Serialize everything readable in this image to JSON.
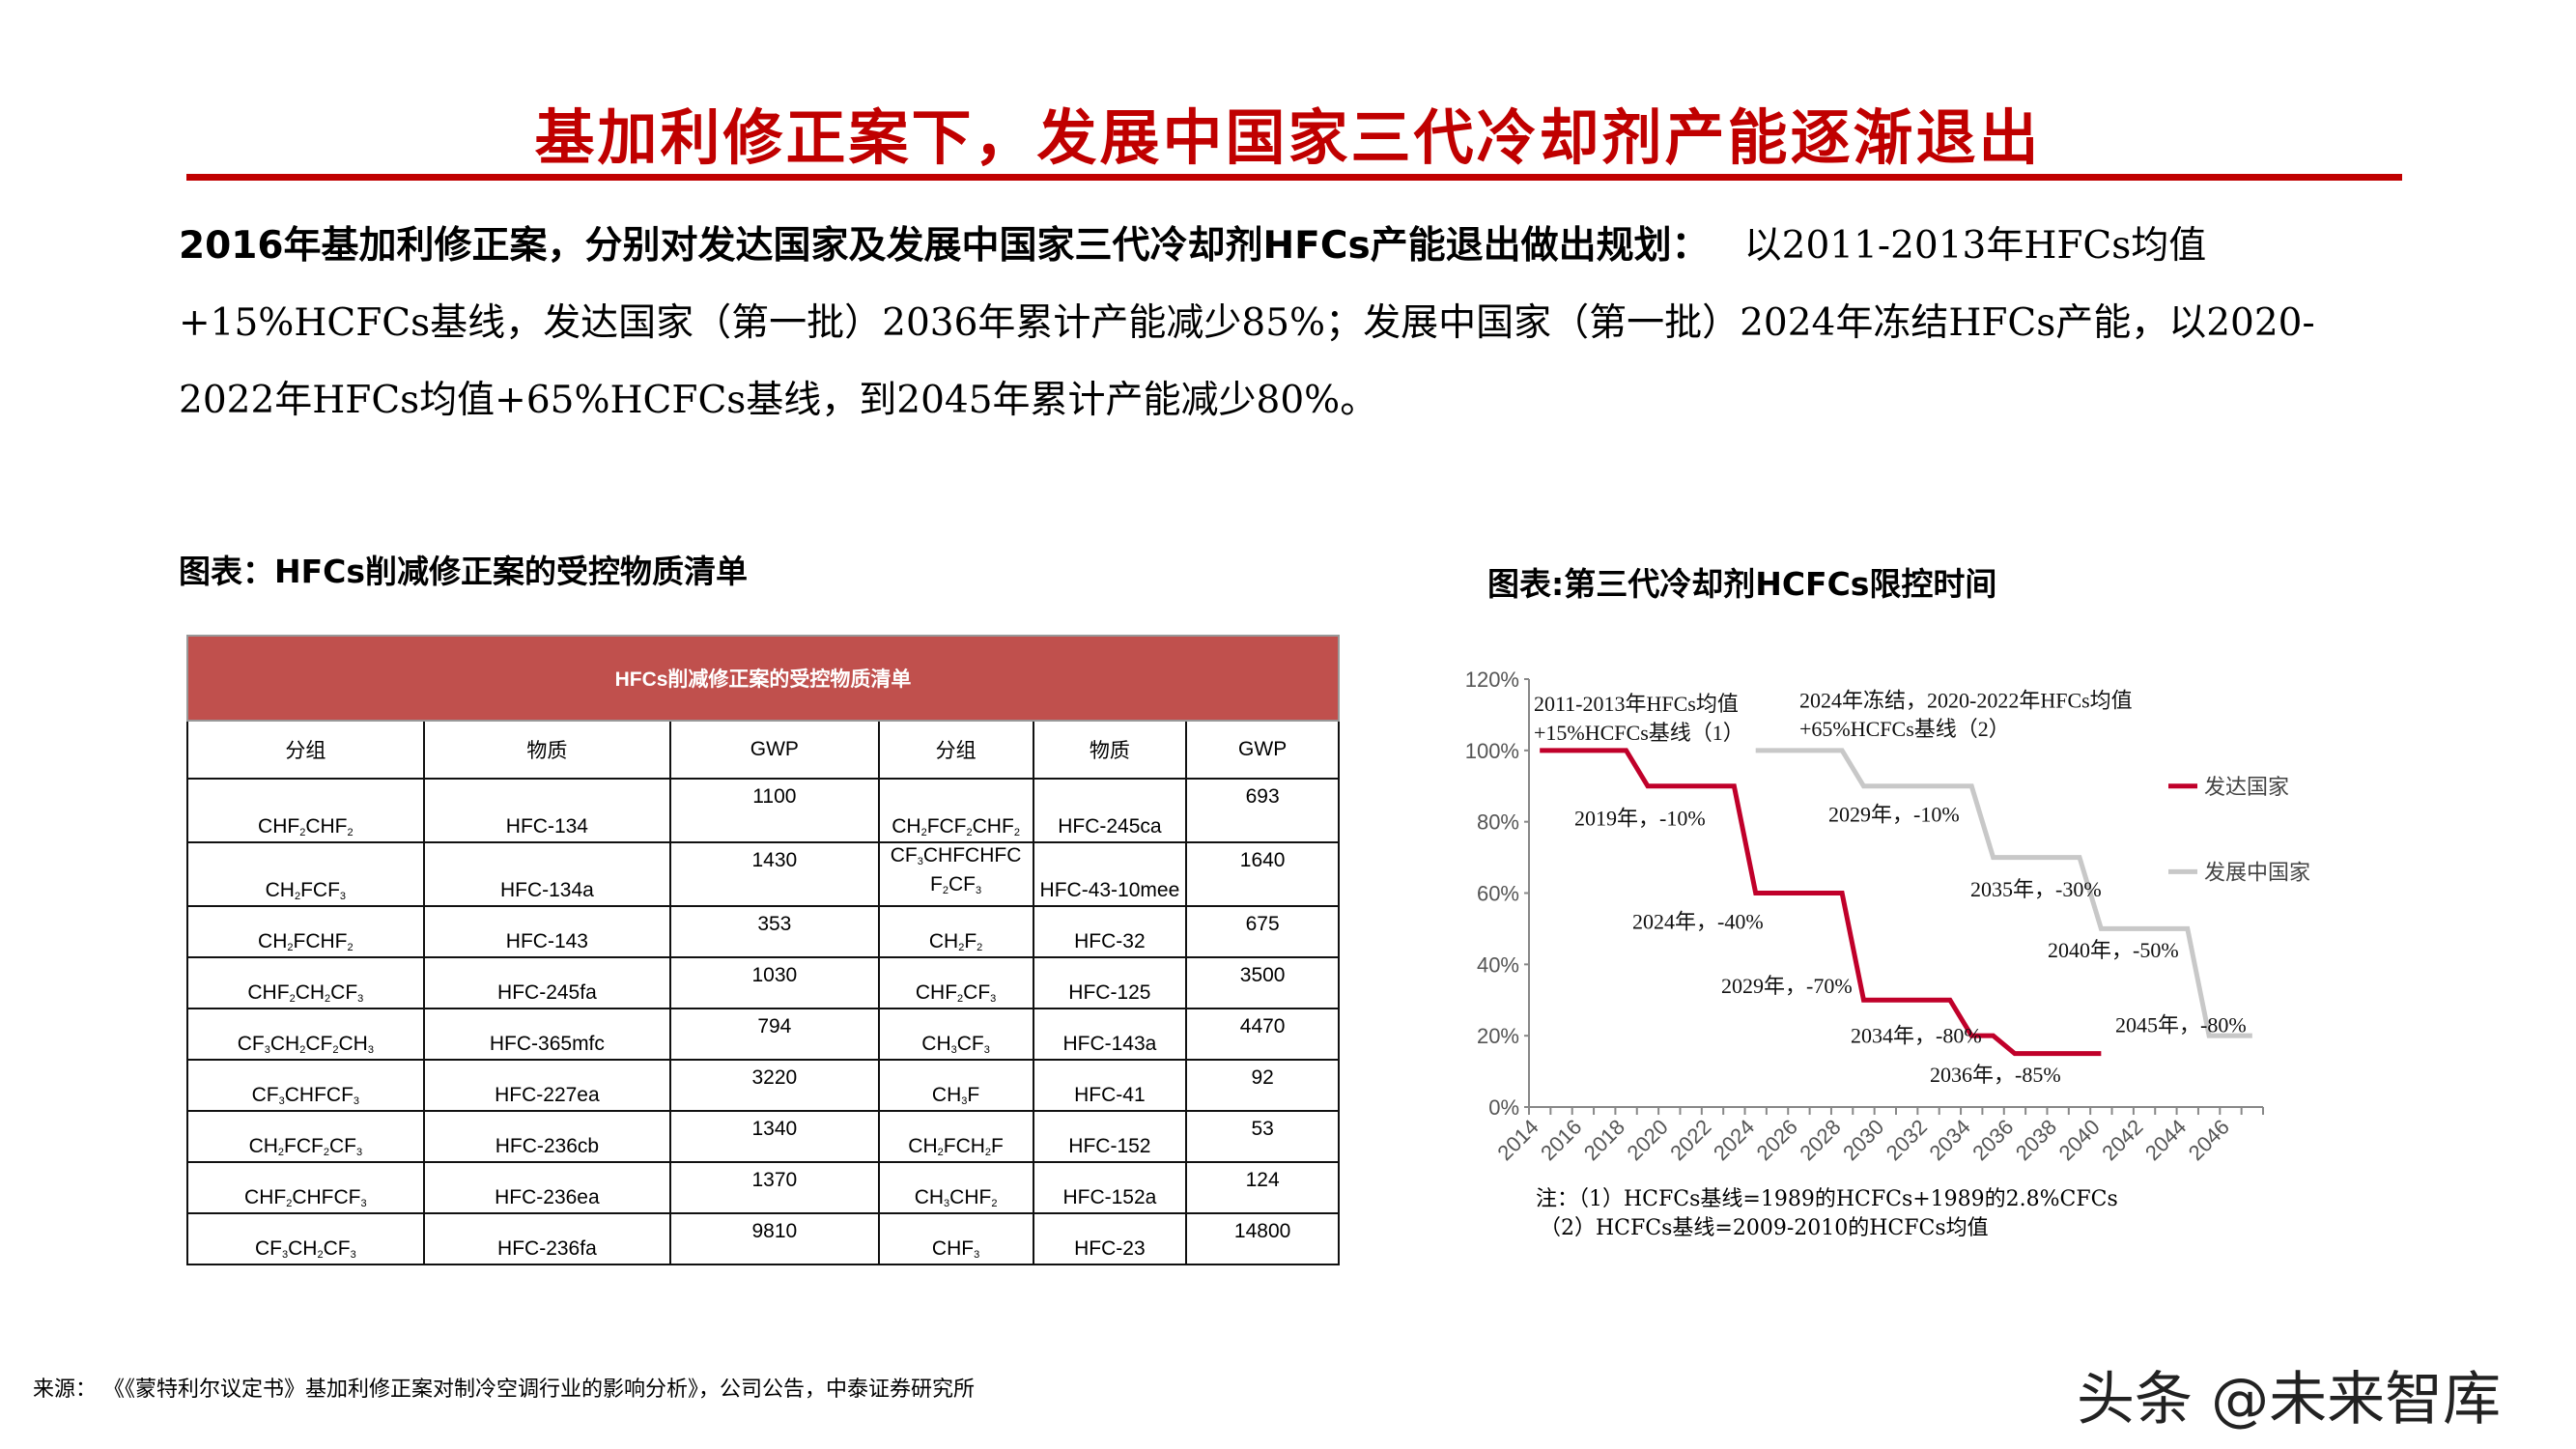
{
  "page": {
    "title": "基加利修正案下，发展中国家三代冷却剂产能逐渐退出",
    "accent_color": "#c00000"
  },
  "intro": {
    "lead": "2016年基加利修正案，分别对发达国家及发展中国家三代冷却剂HFCs产能退出做出规划：",
    "body_line1": "以2011-2013年HFCs均值",
    "body_line2": "+15%HCFCs基线，发达国家（第一批）2036年累计产能减少85%；发展中国家（第一批）2024年冻结HFCs产能，以2020-",
    "body_line3": "2022年HFCs均值+65%HCFCs基线，到2045年累计产能减少80%。"
  },
  "table_section": {
    "caption": "图表：HFCs削减修正案的受控物质清单",
    "header_title": "HFCs削减修正案的受控物质清单",
    "header_color": "#c0504d",
    "columns": [
      "分组",
      "物质",
      "GWP",
      "分组",
      "物质",
      "GWP"
    ],
    "rows": [
      {
        "g1": "CHF2CHF2",
        "s1": "HFC-134",
        "w1": "1100",
        "g2": "CH2FCF2CHF2",
        "s2": "HFC-245ca",
        "w2": "693"
      },
      {
        "g1": "CH2FCF3",
        "s1": "HFC-134a",
        "w1": "1430",
        "g2": "CF3CHFCHFCF2CF3",
        "s2": "HFC-43-10mee",
        "w2": "1640"
      },
      {
        "g1": "CH2FCHF2",
        "s1": "HFC-143",
        "w1": "353",
        "g2": "CH2F2",
        "s2": "HFC-32",
        "w2": "675"
      },
      {
        "g1": "CHF2CH2CF3",
        "s1": "HFC-245fa",
        "w1": "1030",
        "g2": "CHF2CF3",
        "s2": "HFC-125",
        "w2": "3500"
      },
      {
        "g1": "CF3CH2CF2CH3",
        "s1": "HFC-365mfc",
        "w1": "794",
        "g2": "CH3CF3",
        "s2": "HFC-143a",
        "w2": "4470"
      },
      {
        "g1": "CF3CHFCF3",
        "s1": "HFC-227ea",
        "w1": "3220",
        "g2": "CH3F",
        "s2": "HFC-41",
        "w2": "92"
      },
      {
        "g1": "CH2FCF2CF3",
        "s1": "HFC-236cb",
        "w1": "1340",
        "g2": "CH2FCH2F",
        "s2": "HFC-152",
        "w2": "53"
      },
      {
        "g1": "CHF2CHFCF3",
        "s1": "HFC-236ea",
        "w1": "1370",
        "g2": "CH3CHF2",
        "s2": "HFC-152a",
        "w2": "124"
      },
      {
        "g1": "CF3CH2CF3",
        "s1": "HFC-236fa",
        "w1": "9810",
        "g2": "CHF3",
        "s2": "HFC-23",
        "w2": "14800"
      }
    ]
  },
  "chart_section": {
    "caption": "图表:第三代冷却剂HCFCs限控时间",
    "notes": [
      "注：（1）HCFCs基线=1989的HCFCs+1989的2.8%CFCs",
      "（2）HCFCs基线=2009-2010的HCFCs均值"
    ]
  },
  "chart_data": {
    "type": "line",
    "title": "第三代冷却剂HCFCs限控时间",
    "xlabel": "",
    "ylabel": "",
    "ylim": [
      0,
      120
    ],
    "yticks": [
      "0%",
      "20%",
      "40%",
      "60%",
      "80%",
      "100%",
      "120%"
    ],
    "xticks": [
      "2014",
      "2016",
      "2018",
      "2020",
      "2022",
      "2024",
      "2026",
      "2028",
      "2030",
      "2032",
      "2034",
      "2036",
      "2038",
      "2040",
      "2042",
      "2044",
      "2046"
    ],
    "grid": false,
    "legend_position": "right",
    "series": [
      {
        "name": "发达国家",
        "color": "#c0002a",
        "points": [
          [
            2014,
            100
          ],
          [
            2018,
            100
          ],
          [
            2019,
            90
          ],
          [
            2023,
            90
          ],
          [
            2024,
            60
          ],
          [
            2028,
            60
          ],
          [
            2029,
            30
          ],
          [
            2033,
            30
          ],
          [
            2034,
            20
          ],
          [
            2035,
            20
          ],
          [
            2036,
            15
          ],
          [
            2040,
            15
          ]
        ]
      },
      {
        "name": "发展中国家",
        "color": "#c8c8c8",
        "points": [
          [
            2024,
            100
          ],
          [
            2028,
            100
          ],
          [
            2029,
            90
          ],
          [
            2034,
            90
          ],
          [
            2035,
            70
          ],
          [
            2039,
            70
          ],
          [
            2040,
            50
          ],
          [
            2044,
            50
          ],
          [
            2045,
            20
          ],
          [
            2047,
            20
          ]
        ]
      }
    ],
    "annotations": [
      {
        "text_line1": "2011-2013年HFCs均值",
        "text_line2": "+15%HCFCs基线（1）"
      },
      {
        "text_line1": "2024年冻结，2020-2022年HFCs均值",
        "text_line2": "+65%HCFCs基线（2）"
      },
      {
        "text": "2019年，-10%"
      },
      {
        "text": "2024年，-40%"
      },
      {
        "text": "2029年，-70%"
      },
      {
        "text": "2034年，-80%"
      },
      {
        "text": "2036年，-85%"
      },
      {
        "text": "2029年，-10%"
      },
      {
        "text": "2035年，-30%"
      },
      {
        "text": "2040年，-50%"
      },
      {
        "text": "2045年，-80%"
      }
    ]
  },
  "footer": {
    "source": "来源：  《《蒙特利尔议定书》基加利修正案对制冷空调行业的影响分析》，公司公告，中泰证券研究所",
    "watermark": "头条 @未来智库"
  }
}
